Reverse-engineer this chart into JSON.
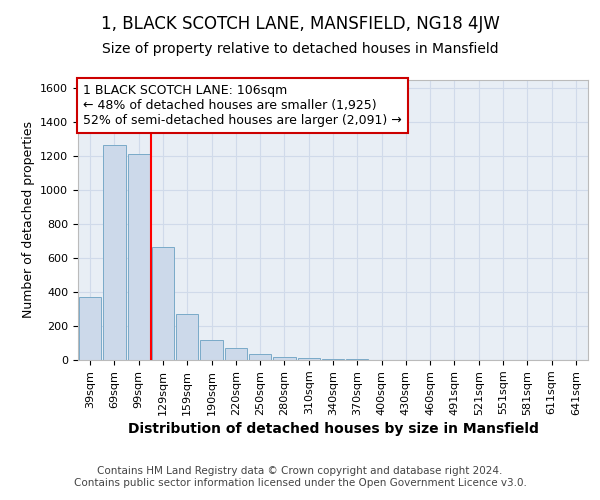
{
  "title1": "1, BLACK SCOTCH LANE, MANSFIELD, NG18 4JW",
  "title2": "Size of property relative to detached houses in Mansfield",
  "xlabel": "Distribution of detached houses by size in Mansfield",
  "ylabel": "Number of detached properties",
  "categories": [
    "39sqm",
    "69sqm",
    "99sqm",
    "129sqm",
    "159sqm",
    "190sqm",
    "220sqm",
    "250sqm",
    "280sqm",
    "310sqm",
    "340sqm",
    "370sqm",
    "400sqm",
    "430sqm",
    "460sqm",
    "491sqm",
    "521sqm",
    "551sqm",
    "581sqm",
    "611sqm",
    "641sqm"
  ],
  "values": [
    370,
    1265,
    1215,
    665,
    270,
    120,
    70,
    35,
    20,
    12,
    5,
    3,
    2,
    1,
    1,
    0,
    0,
    0,
    0,
    0,
    1
  ],
  "bar_color": "#ccd9ea",
  "bar_edge_color": "#7aaac8",
  "red_line_index": 2.5,
  "annotation_line1": "1 BLACK SCOTCH LANE: 106sqm",
  "annotation_line2": "← 48% of detached houses are smaller (1,925)",
  "annotation_line3": "52% of semi-detached houses are larger (2,091) →",
  "annotation_box_color": "#ffffff",
  "annotation_box_edge": "#cc0000",
  "ylim": [
    0,
    1650
  ],
  "yticks": [
    0,
    200,
    400,
    600,
    800,
    1000,
    1200,
    1400,
    1600
  ],
  "grid_color": "#d0daea",
  "bg_color": "#e8eef5",
  "footer_line1": "Contains HM Land Registry data © Crown copyright and database right 2024.",
  "footer_line2": "Contains public sector information licensed under the Open Government Licence v3.0.",
  "title1_fontsize": 12,
  "title2_fontsize": 10,
  "xlabel_fontsize": 10,
  "ylabel_fontsize": 9,
  "tick_fontsize": 8,
  "annotation_fontsize": 9,
  "footer_fontsize": 7.5
}
